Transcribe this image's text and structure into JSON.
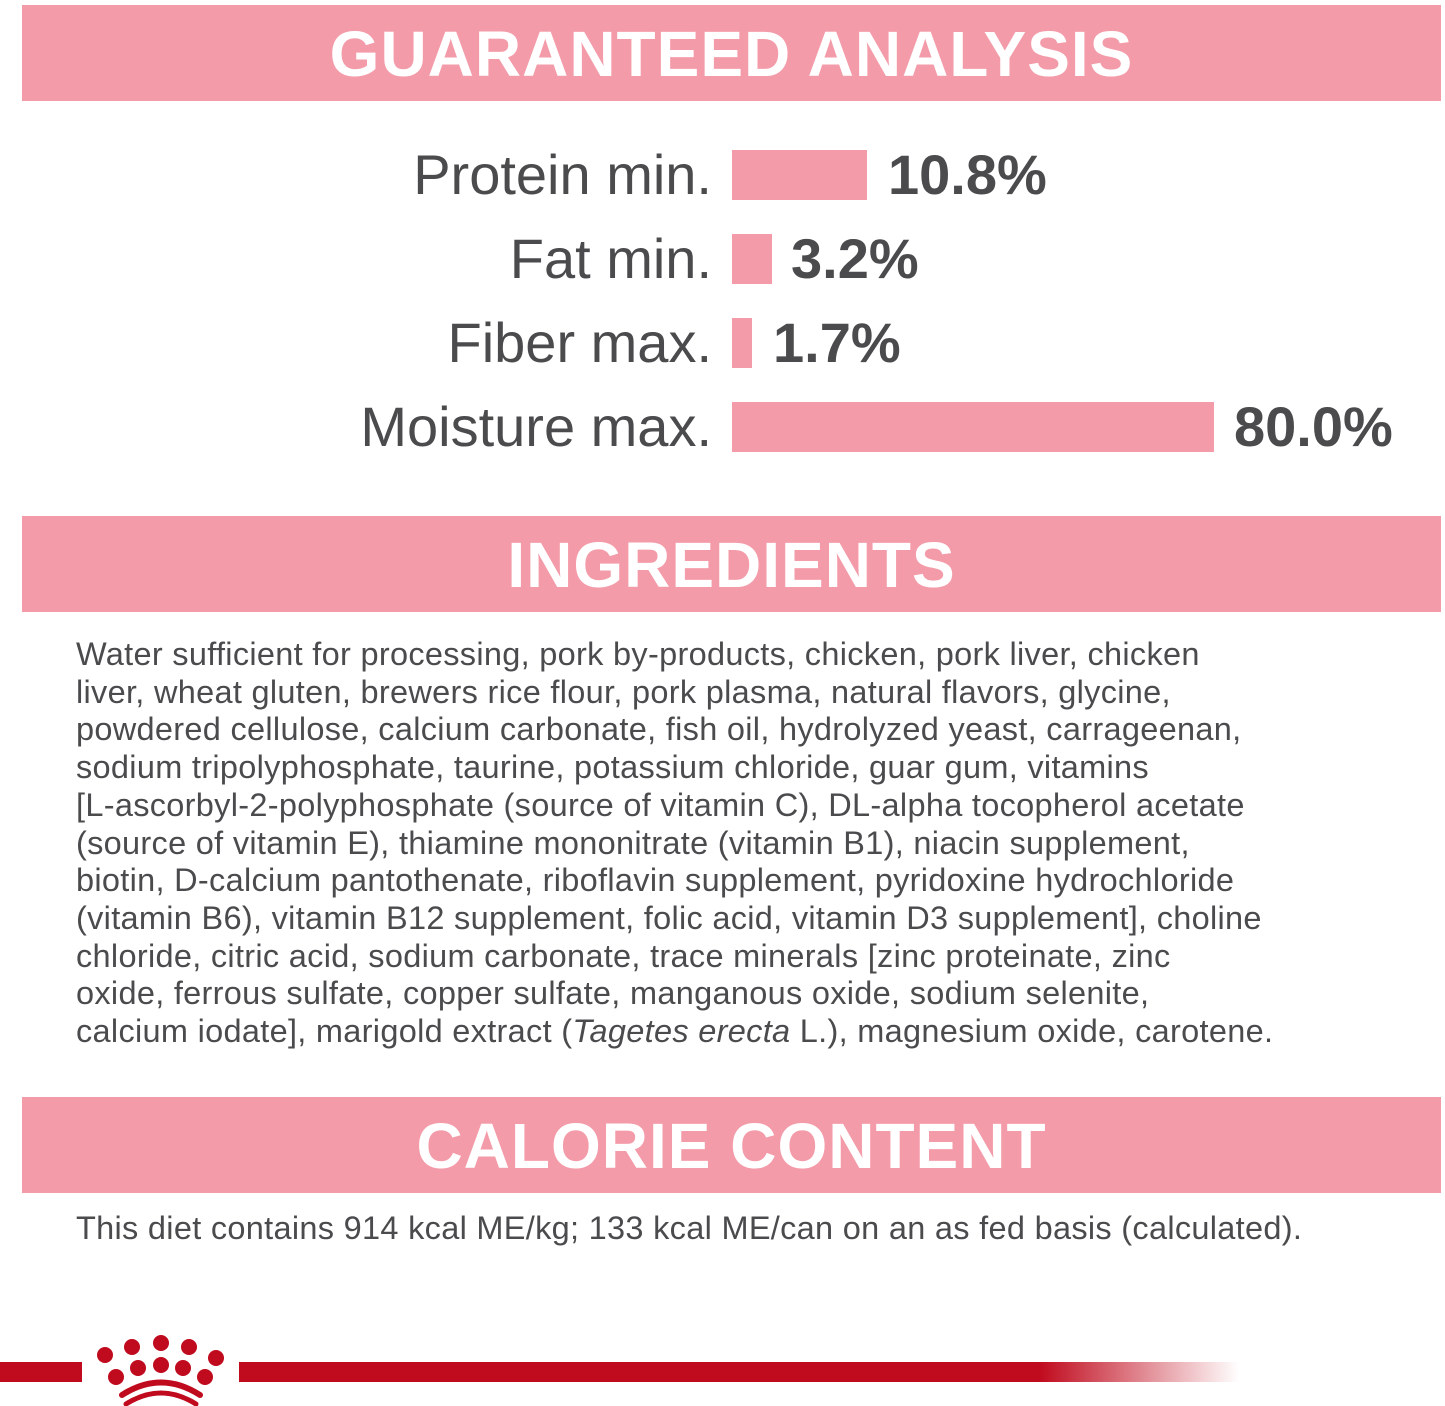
{
  "sections": {
    "guaranteed_analysis": "GUARANTEED ANALYSIS",
    "ingredients": "INGREDIENTS",
    "calorie_content": "CALORIE CONTENT"
  },
  "analysis": [
    {
      "label": "Protein min.",
      "value": "10.8%"
    },
    {
      "label": "Fat min.",
      "value": "3.2%"
    },
    {
      "label": "Fiber max.",
      "value": "1.7%"
    },
    {
      "label": "Moisture max.",
      "value": "80.0%"
    }
  ],
  "ingredients_lines": [
    "Water sufficient for processing, pork by-products, chicken, pork liver, chicken",
    "liver, wheat gluten, brewers rice flour, pork plasma, natural flavors, glycine,",
    "powdered cellulose, calcium carbonate, fish oil, hydrolyzed yeast, carrageenan,",
    "sodium tripolyphosphate, taurine, potassium chloride, guar gum, vitamins",
    "[L-ascorbyl-2-polyphosphate (source of vitamin C), DL-alpha tocopherol acetate",
    "(source of vitamin E), thiamine mononitrate (vitamin B1), niacin supplement,",
    "biotin, D-calcium pantothenate, riboflavin supplement, pyridoxine hydrochloride",
    "(vitamin B6), vitamin B12 supplement, folic acid, vitamin D3 supplement], choline",
    "chloride, citric acid, sodium carbonate, trace minerals [zinc proteinate, zinc",
    "oxide, ferrous sulfate, copper sulfate, manganous oxide, sodium selenite,"
  ],
  "ingredients_last": {
    "pre": "calcium iodate], marigold extract (",
    "italic": "Tagetes erecta",
    "post": " L.), magnesium oxide, carotene."
  },
  "calorie_text": "This diet contains 914 kcal ME/kg; 133 kcal ME/can on an as fed basis (calculated).",
  "colors": {
    "header": "#f49ba9",
    "bar": "#f49ba9",
    "text": "#4b4b4d",
    "brand_red": "#c00a1d"
  },
  "logo": "crown-logo"
}
